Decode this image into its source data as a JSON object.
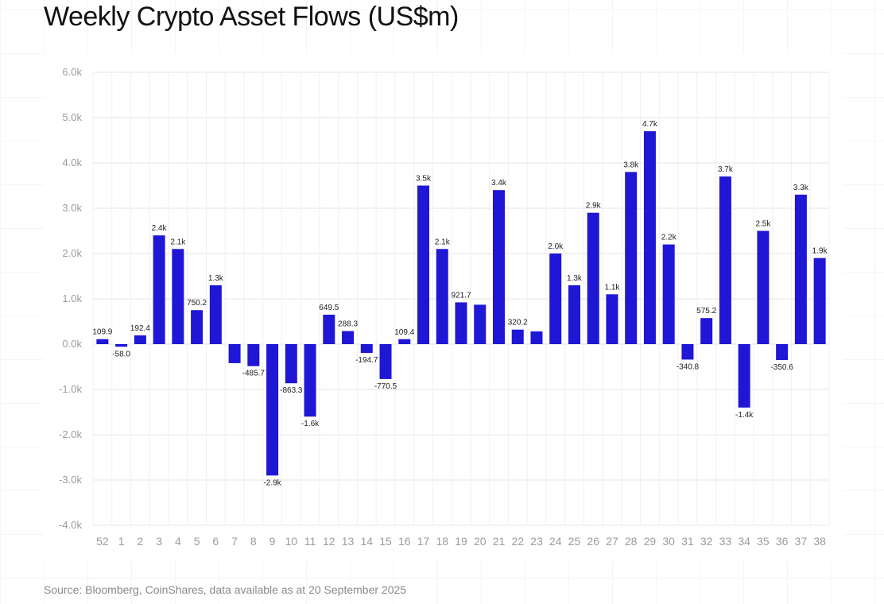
{
  "title": "Weekly Crypto Asset Flows (US$m)",
  "source": "Source: Bloomberg, CoinShares, data available as at 20 September 2025",
  "colors": {
    "bar": "#1f16d6",
    "grid": "#e6e6e6",
    "text": "#111111"
  },
  "chart_data": {
    "type": "bar",
    "title": "Weekly Crypto Asset Flows (US$m)",
    "xlabel": "",
    "ylabel": "",
    "ylim": [
      -4000,
      6000
    ],
    "yticks": [
      6000,
      5000,
      4000,
      3000,
      2000,
      1000,
      0,
      -1000,
      -2000,
      -3000,
      -4000
    ],
    "ytick_labels": [
      "6.0k",
      "5.0k",
      "4.0k",
      "3.0k",
      "2.0k",
      "1.0k",
      "0.0k",
      "-1.0k",
      "-2.0k",
      "-3.0k",
      "-4.0k"
    ],
    "grid": true,
    "legend": "none",
    "categories": [
      "52",
      "1",
      "2",
      "3",
      "4",
      "5",
      "6",
      "7",
      "8",
      "9",
      "10",
      "11",
      "12",
      "13",
      "14",
      "15",
      "16",
      "17",
      "18",
      "19",
      "20",
      "21",
      "22",
      "23",
      "24",
      "25",
      "26",
      "27",
      "28",
      "29",
      "30",
      "31",
      "32",
      "33",
      "34",
      "35",
      "36",
      "37",
      "38"
    ],
    "values": [
      109.9,
      -58.0,
      192.4,
      2400,
      2100,
      750.2,
      1300,
      -420,
      -485.7,
      -2900,
      -863.3,
      -1600,
      649.5,
      288.3,
      -194.7,
      -770.5,
      109.4,
      3500,
      2100,
      921.7,
      870,
      3400,
      320.2,
      280,
      2000,
      1300,
      2900,
      1100,
      3800,
      4700,
      2200,
      -340.8,
      575.2,
      3700,
      -1400,
      2500,
      -350.6,
      3300,
      1900
    ],
    "labels": [
      "109.9",
      "-58.0",
      "192.4",
      "2.4k",
      "2.1k",
      "750.2",
      "1.3k",
      "",
      "-485.7",
      "-2.9k",
      "-863.3",
      "-1.6k",
      "649.5",
      "288.3",
      "-194.7",
      "-770.5",
      "109.4",
      "3.5k",
      "2.1k",
      "921.7",
      "",
      "3.4k",
      "320.2",
      "",
      "2.0k",
      "1.3k",
      "2.9k",
      "1.1k",
      "3.8k",
      "4.7k",
      "2.2k",
      "-340.8",
      "575.2",
      "3.7k",
      "-1.4k",
      "2.5k",
      "-350.6",
      "3.3k",
      "1.9k"
    ]
  }
}
